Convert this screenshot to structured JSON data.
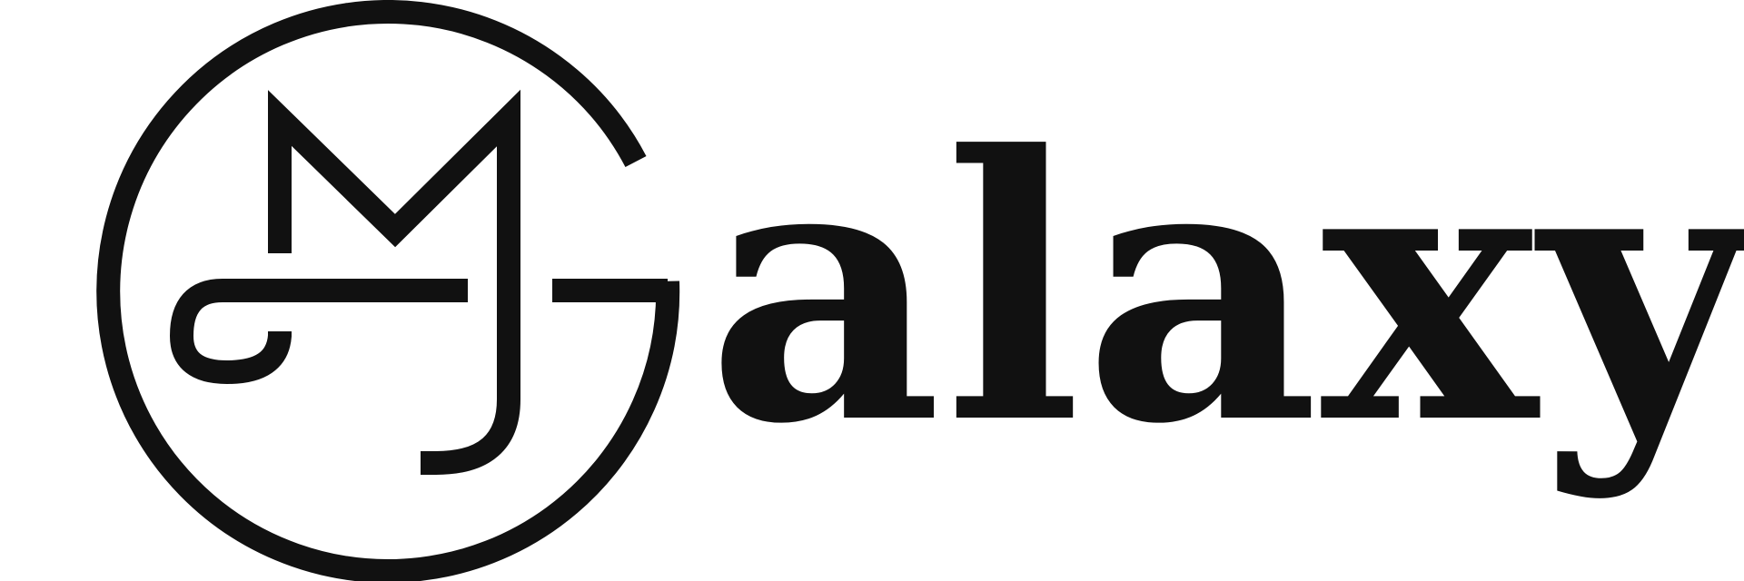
{
  "logo": {
    "monogram": "GMJ",
    "wordmark": "alaxy",
    "colors": {
      "ink": "#111111",
      "background": "#ffffff"
    }
  }
}
